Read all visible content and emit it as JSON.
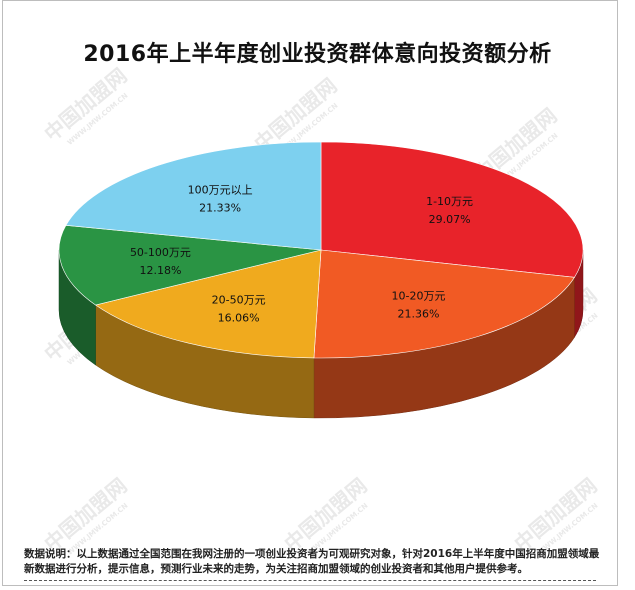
{
  "chart_data": {
    "type": "pie",
    "title": "2016年上半年度创业投资群体意向投资额分析",
    "slices": [
      {
        "label": "1-10万元",
        "value": 29.07,
        "value_label": "29.07%",
        "color": "#e8232a"
      },
      {
        "label": "10-20万元",
        "value": 21.36,
        "value_label": "21.36%",
        "color": "#f15a24"
      },
      {
        "label": "20-50万元",
        "value": 16.06,
        "value_label": "16.06%",
        "color": "#f0aa1e"
      },
      {
        "label": "50-100万元",
        "value": 12.18,
        "value_label": "12.18%",
        "color": "#2a9444"
      },
      {
        "label": "100万元以上",
        "value": 21.33,
        "value_label": "21.33%",
        "color": "#7dd0ef"
      }
    ]
  },
  "note": "数据说明：以上数据通过全国范围在我网注册的一项创业投资者为可观研究对象，针对2016年上半年度中国招商加盟领域最新数据进行分析，提示信息，预测行业未来的走势，为关注招商加盟领域的创业投资者和其他用户提供参考。",
  "watermark": {
    "text": "中国加盟网",
    "sub": "WWW.JMW.COM.CN"
  }
}
